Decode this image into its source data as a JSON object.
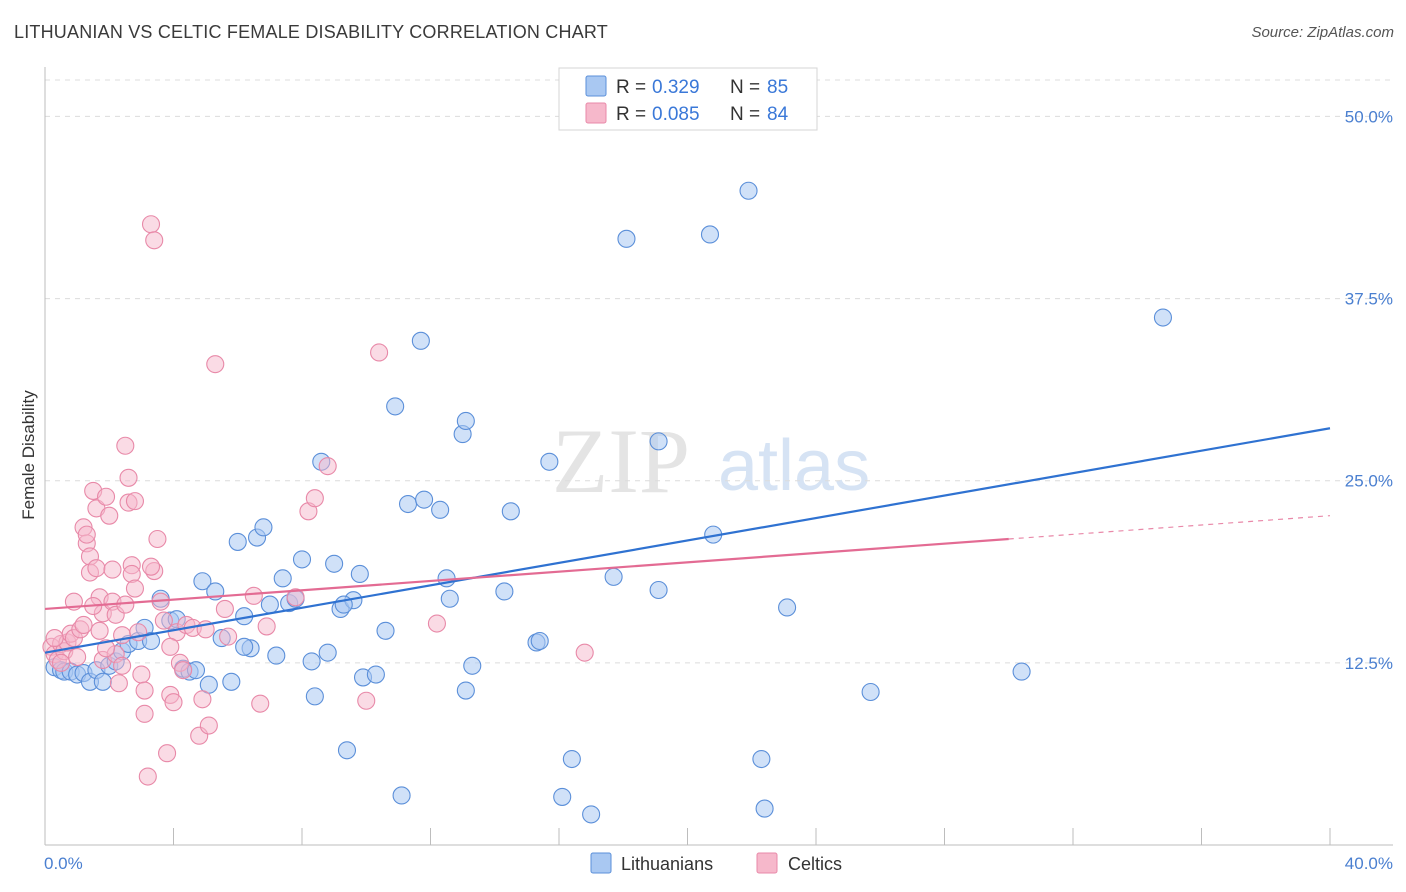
{
  "title": "LITHUANIAN VS CELTIC FEMALE DISABILITY CORRELATION CHART",
  "source": "Source: ZipAtlas.com",
  "watermark": {
    "zip": "ZIP",
    "atlas": "atlas"
  },
  "colors": {
    "blue_fill": "#a9c8f2",
    "blue_stroke": "#5b8fd9",
    "blue_line": "#2f72d1",
    "pink_fill": "#f6b8cb",
    "pink_stroke": "#e889a8",
    "pink_line": "#e36b93",
    "axis_text": "#4a7fd0"
  },
  "legend": {
    "rows": [
      {
        "r_label": "R = ",
        "r_value": "0.329",
        "n_label": "N = ",
        "n_value": "85"
      },
      {
        "r_label": "R = ",
        "r_value": "0.085",
        "n_label": "N = ",
        "n_value": "84"
      }
    ]
  },
  "bottom_legend": [
    "Lithuanians",
    "Celtics"
  ],
  "chart_data": {
    "type": "scatter",
    "title": "LITHUANIAN VS CELTIC FEMALE DISABILITY CORRELATION CHART",
    "xlabel": "",
    "ylabel": "Female Disability",
    "xlim": [
      0,
      40
    ],
    "ylim": [
      0,
      52.5
    ],
    "x_tick_labels": [
      "0.0%",
      "40.0%"
    ],
    "y_ticks": [
      12.5,
      25.0,
      37.5,
      50.0
    ],
    "y_tick_labels": [
      "12.5%",
      "25.0%",
      "37.5%",
      "50.0%"
    ],
    "grid": true,
    "legend_position": "top-center",
    "series": [
      {
        "name": "Lithuanians",
        "stats": {
          "R": 0.329,
          "N": 85
        },
        "trend": {
          "x": [
            0,
            40
          ],
          "y": [
            13.2,
            28.6
          ]
        },
        "points": [
          [
            0.3,
            12.2
          ],
          [
            0.5,
            12.0
          ],
          [
            0.6,
            11.9
          ],
          [
            0.8,
            11.9
          ],
          [
            1.0,
            11.7
          ],
          [
            1.2,
            11.8
          ],
          [
            1.4,
            11.2
          ],
          [
            1.6,
            12.0
          ],
          [
            1.8,
            11.2
          ],
          [
            2.0,
            12.3
          ],
          [
            2.2,
            12.6
          ],
          [
            2.4,
            13.3
          ],
          [
            2.6,
            13.8
          ],
          [
            2.9,
            14.0
          ],
          [
            3.1,
            14.9
          ],
          [
            3.3,
            14.0
          ],
          [
            3.6,
            16.9
          ],
          [
            3.9,
            15.4
          ],
          [
            4.1,
            15.5
          ],
          [
            4.3,
            12.1
          ],
          [
            4.5,
            11.9
          ],
          [
            4.7,
            12.0
          ],
          [
            4.9,
            18.1
          ],
          [
            5.1,
            11.0
          ],
          [
            5.3,
            17.4
          ],
          [
            5.5,
            14.2
          ],
          [
            5.8,
            11.2
          ],
          [
            6.0,
            20.8
          ],
          [
            6.2,
            15.7
          ],
          [
            6.4,
            13.5
          ],
          [
            6.6,
            21.1
          ],
          [
            6.8,
            21.8
          ],
          [
            7.0,
            16.5
          ],
          [
            7.2,
            13.0
          ],
          [
            7.4,
            18.3
          ],
          [
            7.6,
            16.6
          ],
          [
            7.8,
            16.9
          ],
          [
            8.0,
            19.6
          ],
          [
            8.3,
            12.6
          ],
          [
            8.4,
            10.2
          ],
          [
            8.6,
            26.3
          ],
          [
            8.8,
            13.2
          ],
          [
            9.0,
            19.3
          ],
          [
            9.2,
            16.2
          ],
          [
            9.4,
            6.5
          ],
          [
            9.6,
            16.8
          ],
          [
            9.8,
            18.6
          ],
          [
            9.9,
            11.5
          ],
          [
            10.3,
            11.7
          ],
          [
            10.6,
            14.7
          ],
          [
            10.9,
            30.1
          ],
          [
            11.1,
            3.4
          ],
          [
            11.3,
            23.4
          ],
          [
            11.7,
            34.6
          ],
          [
            11.8,
            23.7
          ],
          [
            12.3,
            23.0
          ],
          [
            12.5,
            18.3
          ],
          [
            12.6,
            16.9
          ],
          [
            13.0,
            28.2
          ],
          [
            13.1,
            29.1
          ],
          [
            13.1,
            10.6
          ],
          [
            13.3,
            12.3
          ],
          [
            14.3,
            17.4
          ],
          [
            14.5,
            22.9
          ],
          [
            15.3,
            13.9
          ],
          [
            15.4,
            14.0
          ],
          [
            15.7,
            26.3
          ],
          [
            16.1,
            3.3
          ],
          [
            16.4,
            5.9
          ],
          [
            17.0,
            2.1
          ],
          [
            18.1,
            41.6
          ],
          [
            19.1,
            17.5
          ],
          [
            19.1,
            27.7
          ],
          [
            20.7,
            41.9
          ],
          [
            20.8,
            21.3
          ],
          [
            21.9,
            44.9
          ],
          [
            22.3,
            5.9
          ],
          [
            22.4,
            2.5
          ],
          [
            23.1,
            16.3
          ],
          [
            25.7,
            10.5
          ],
          [
            30.4,
            11.9
          ],
          [
            34.8,
            36.2
          ],
          [
            6.2,
            13.6
          ],
          [
            9.3,
            16.5
          ],
          [
            17.7,
            18.4
          ]
        ]
      },
      {
        "name": "Celtics",
        "stats": {
          "R": 0.085,
          "N": 84
        },
        "trend": {
          "x": [
            0,
            30
          ],
          "y": [
            16.2,
            21.0
          ]
        },
        "trend_dashed": {
          "x": [
            30,
            40
          ],
          "y": [
            21.0,
            22.6
          ]
        },
        "points": [
          [
            0.2,
            13.6
          ],
          [
            0.3,
            13.1
          ],
          [
            0.4,
            12.7
          ],
          [
            0.5,
            13.8
          ],
          [
            0.6,
            13.3
          ],
          [
            0.7,
            13.9
          ],
          [
            0.8,
            14.5
          ],
          [
            0.9,
            14.2
          ],
          [
            1.0,
            12.9
          ],
          [
            1.1,
            14.8
          ],
          [
            1.2,
            15.1
          ],
          [
            1.2,
            21.8
          ],
          [
            1.3,
            20.7
          ],
          [
            1.4,
            19.8
          ],
          [
            1.4,
            18.7
          ],
          [
            1.5,
            24.3
          ],
          [
            1.6,
            23.1
          ],
          [
            1.6,
            19.0
          ],
          [
            1.7,
            17.0
          ],
          [
            1.8,
            15.9
          ],
          [
            1.8,
            12.7
          ],
          [
            1.9,
            23.9
          ],
          [
            2.0,
            22.6
          ],
          [
            2.1,
            18.9
          ],
          [
            2.1,
            16.7
          ],
          [
            2.2,
            13.1
          ],
          [
            2.3,
            11.1
          ],
          [
            2.4,
            14.4
          ],
          [
            2.4,
            12.3
          ],
          [
            2.5,
            27.4
          ],
          [
            2.6,
            25.2
          ],
          [
            2.6,
            23.5
          ],
          [
            2.7,
            19.2
          ],
          [
            2.7,
            18.6
          ],
          [
            2.8,
            23.6
          ],
          [
            2.8,
            17.6
          ],
          [
            2.9,
            14.6
          ],
          [
            3.0,
            11.7
          ],
          [
            3.1,
            10.6
          ],
          [
            3.1,
            9.0
          ],
          [
            3.2,
            4.7
          ],
          [
            3.3,
            42.6
          ],
          [
            3.4,
            41.5
          ],
          [
            3.4,
            18.8
          ],
          [
            3.5,
            21.0
          ],
          [
            3.6,
            16.7
          ],
          [
            3.7,
            15.4
          ],
          [
            3.8,
            6.3
          ],
          [
            3.9,
            10.3
          ],
          [
            4.0,
            9.8
          ],
          [
            4.1,
            14.6
          ],
          [
            4.2,
            12.5
          ],
          [
            4.4,
            15.1
          ],
          [
            4.6,
            14.9
          ],
          [
            4.8,
            7.5
          ],
          [
            4.9,
            10.0
          ],
          [
            5.0,
            14.8
          ],
          [
            5.1,
            8.2
          ],
          [
            5.3,
            33.0
          ],
          [
            5.6,
            16.2
          ],
          [
            6.5,
            17.1
          ],
          [
            6.7,
            9.7
          ],
          [
            7.8,
            17.0
          ],
          [
            8.2,
            22.9
          ],
          [
            8.4,
            23.8
          ],
          [
            8.8,
            26.0
          ],
          [
            10.0,
            9.9
          ],
          [
            10.4,
            33.8
          ],
          [
            12.2,
            15.2
          ],
          [
            16.8,
            13.2
          ],
          [
            0.3,
            14.2
          ],
          [
            0.5,
            12.5
          ],
          [
            0.9,
            16.7
          ],
          [
            1.3,
            21.3
          ],
          [
            1.5,
            16.4
          ],
          [
            1.7,
            14.7
          ],
          [
            1.9,
            13.5
          ],
          [
            2.2,
            15.8
          ],
          [
            2.5,
            16.5
          ],
          [
            3.3,
            19.1
          ],
          [
            3.9,
            13.6
          ],
          [
            4.3,
            12.0
          ],
          [
            5.7,
            14.3
          ],
          [
            6.9,
            15.0
          ]
        ]
      }
    ]
  }
}
